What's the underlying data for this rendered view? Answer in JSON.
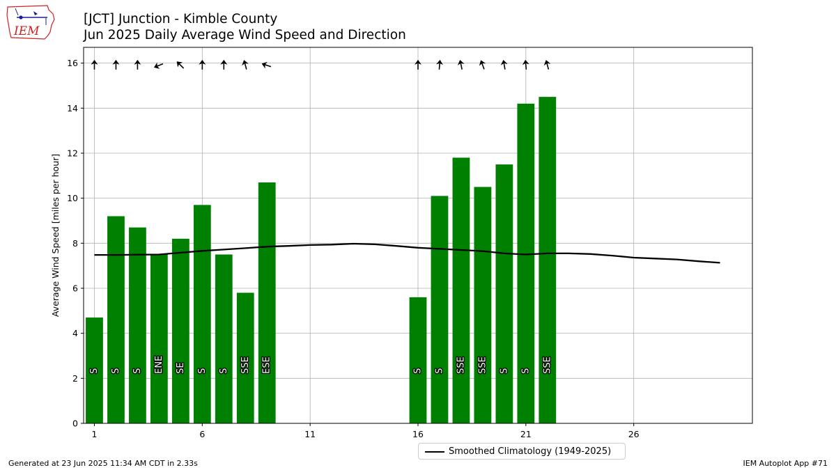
{
  "header": {
    "title_line1": "[JCT] Junction - Kimble County",
    "title_line2": "Jun 2025 Daily Average Wind Speed and Direction"
  },
  "logo": {
    "text": "IEM"
  },
  "footer": {
    "generated": "Generated at 23 Jun 2025 11:34 AM CDT in 2.33s",
    "app": "IEM Autoplot App #71"
  },
  "colors": {
    "bar": "#008000",
    "climatology": "#000000",
    "grid": "#b0b0b0",
    "logo_red": "#cc2222",
    "logo_blue": "#1a1aa0"
  },
  "chart_data": {
    "type": "bar",
    "ylabel": "Average Wind Speed [miles per hour]",
    "xlabel": "",
    "xlim": [
      0.5,
      31.5
    ],
    "ylim": [
      0,
      16.7
    ],
    "xticks": [
      1,
      6,
      11,
      16,
      21,
      26
    ],
    "yticks": [
      0,
      2,
      4,
      6,
      8,
      10,
      12,
      14,
      16
    ],
    "grid": true,
    "legend_position": "bottom-center",
    "series": [
      {
        "name": "Daily Average Wind Speed",
        "type": "bar",
        "points": [
          {
            "day": 1,
            "value": 4.7,
            "dir_label": "S",
            "dir_deg": 180
          },
          {
            "day": 2,
            "value": 9.2,
            "dir_label": "S",
            "dir_deg": 180
          },
          {
            "day": 3,
            "value": 8.7,
            "dir_label": "S",
            "dir_deg": 180
          },
          {
            "day": 4,
            "value": 7.5,
            "dir_label": "ENE",
            "dir_deg": 68
          },
          {
            "day": 5,
            "value": 8.2,
            "dir_label": "SE",
            "dir_deg": 135
          },
          {
            "day": 6,
            "value": 9.7,
            "dir_label": "S",
            "dir_deg": 180
          },
          {
            "day": 7,
            "value": 7.5,
            "dir_label": "S",
            "dir_deg": 180
          },
          {
            "day": 8,
            "value": 5.8,
            "dir_label": "SSE",
            "dir_deg": 165
          },
          {
            "day": 9,
            "value": 10.7,
            "dir_label": "ESE",
            "dir_deg": 108
          },
          {
            "day": 16,
            "value": 5.6,
            "dir_label": "S",
            "dir_deg": 180
          },
          {
            "day": 17,
            "value": 10.1,
            "dir_label": "S",
            "dir_deg": 185
          },
          {
            "day": 18,
            "value": 11.8,
            "dir_label": "SSE",
            "dir_deg": 168
          },
          {
            "day": 19,
            "value": 10.5,
            "dir_label": "SSE",
            "dir_deg": 160
          },
          {
            "day": 20,
            "value": 11.5,
            "dir_label": "S",
            "dir_deg": 170
          },
          {
            "day": 21,
            "value": 14.2,
            "dir_label": "S",
            "dir_deg": 175
          },
          {
            "day": 22,
            "value": 14.5,
            "dir_label": "SSE",
            "dir_deg": 165
          }
        ]
      },
      {
        "name": "Smoothed Climatology (1949-2025)",
        "type": "line",
        "x": [
          1,
          2,
          3,
          4,
          5,
          6,
          7,
          8,
          9,
          10,
          11,
          12,
          13,
          14,
          15,
          16,
          17,
          18,
          19,
          20,
          21,
          22,
          23,
          24,
          25,
          26,
          27,
          28,
          29,
          30
        ],
        "values": [
          7.48,
          7.48,
          7.49,
          7.5,
          7.58,
          7.66,
          7.72,
          7.78,
          7.85,
          7.88,
          7.92,
          7.94,
          7.98,
          7.95,
          7.88,
          7.8,
          7.75,
          7.7,
          7.65,
          7.55,
          7.5,
          7.55,
          7.55,
          7.52,
          7.45,
          7.36,
          7.32,
          7.28,
          7.2,
          7.13
        ]
      }
    ]
  }
}
